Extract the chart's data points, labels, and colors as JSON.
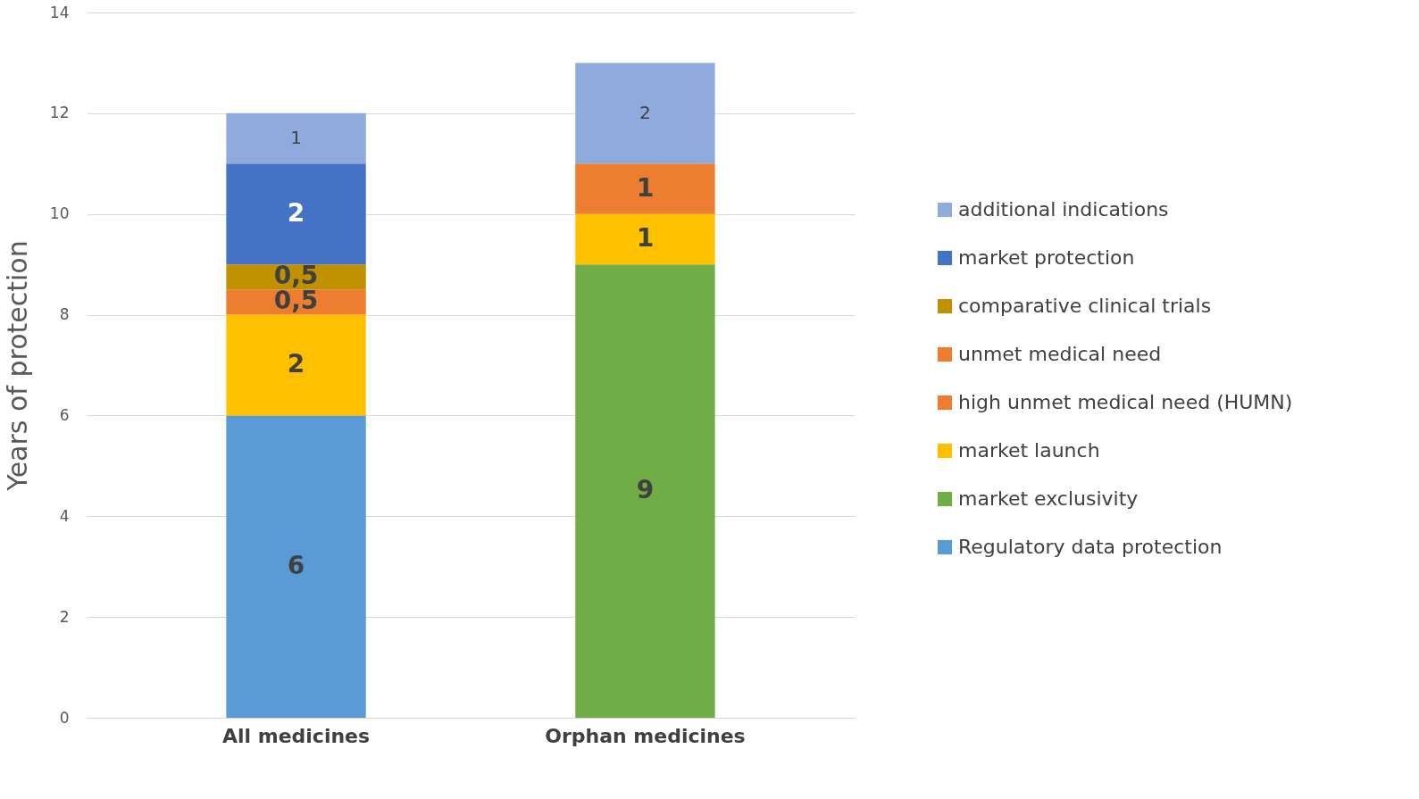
{
  "chart_data": {
    "type": "bar",
    "stacked": true,
    "ylabel": "Years of protection",
    "categories": [
      "All medicines",
      "Orphan medicines"
    ],
    "series": [
      {
        "name": "Regulatory data protection",
        "color": "#5b9bd5",
        "values": [
          6,
          null
        ],
        "value_labels": [
          "6",
          null
        ]
      },
      {
        "name": "market exclusivity",
        "color": "#70ad47",
        "values": [
          null,
          9
        ],
        "value_labels": [
          null,
          "9"
        ]
      },
      {
        "name": "market launch",
        "color": "#ffc000",
        "values": [
          2,
          1
        ],
        "value_labels": [
          "2",
          "1"
        ]
      },
      {
        "name": "high unmet medical need (HUMN)",
        "color": "#ed7d31",
        "values": [
          null,
          1
        ],
        "value_labels": [
          null,
          "1"
        ]
      },
      {
        "name": "unmet medical need",
        "color": "#ed7d31",
        "values": [
          0.5,
          null
        ],
        "value_labels": [
          "0,5",
          null
        ]
      },
      {
        "name": "comparative clinical trials",
        "color": "#bf9000",
        "values": [
          0.5,
          null
        ],
        "value_labels": [
          "0,5",
          null
        ]
      },
      {
        "name": "market protection",
        "color": "#4472c4",
        "values": [
          2,
          null
        ],
        "value_labels": [
          "2",
          null
        ]
      },
      {
        "name": "additional indications",
        "color": "#8faadc",
        "values": [
          1,
          2
        ],
        "value_labels": [
          "1",
          "2"
        ]
      }
    ],
    "ylim": [
      0,
      14
    ],
    "yticks": [
      0,
      2,
      4,
      6,
      8,
      10,
      12,
      14
    ],
    "grid": "y",
    "legend": "right"
  }
}
